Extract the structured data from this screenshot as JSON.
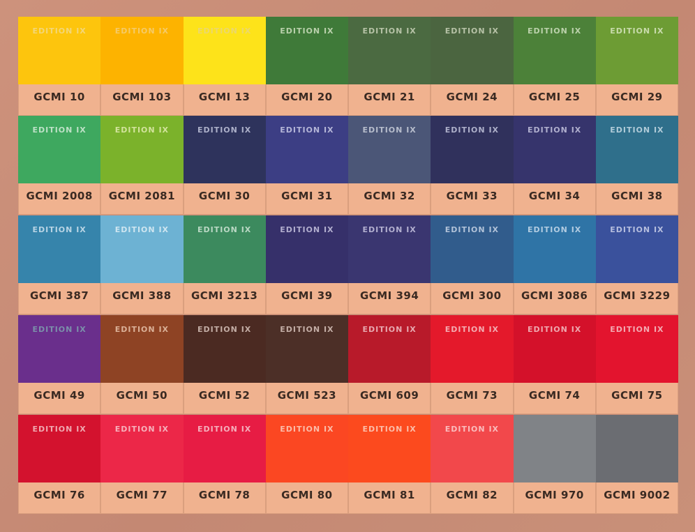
{
  "rows": [
    [
      {
        "code": "GCMI 10",
        "edition": "EDITION IX",
        "color": "#fdc50d",
        "text": "#f2d98a"
      },
      {
        "code": "GCMI 103",
        "edition": "EDITION IX",
        "color": "#fdb300",
        "text": "#f4cf7a"
      },
      {
        "code": "GCMI 13",
        "edition": "EDITION IX",
        "color": "#fde31a",
        "text": "#e9d67c"
      },
      {
        "code": "GCMI 20",
        "edition": "EDITION IX",
        "color": "#3f7a39",
        "text": "#cfe0c0"
      },
      {
        "code": "GCMI 21",
        "edition": "EDITION IX",
        "color": "#4b6a41",
        "text": "#c9d2b8"
      },
      {
        "code": "GCMI 24",
        "edition": "EDITION IX",
        "color": "#4b6540",
        "text": "#c9d2b8"
      },
      {
        "code": "GCMI 25",
        "edition": "EDITION IX",
        "color": "#4c8139",
        "text": "#cfe0c0"
      },
      {
        "code": "GCMI 29",
        "edition": "EDITION IX",
        "color": "#6d9c34",
        "text": "#d8e6c0"
      }
    ],
    [
      {
        "code": "GCMI 2008",
        "edition": "EDITION IX",
        "color": "#3ea85f",
        "text": "#d4ecd8"
      },
      {
        "code": "GCMI 2081",
        "edition": "EDITION IX",
        "color": "#7bb22b",
        "text": "#e2ecb0"
      },
      {
        "code": "GCMI 30",
        "edition": "EDITION IX",
        "color": "#2e335c",
        "text": "#c3c6dc"
      },
      {
        "code": "GCMI 31",
        "edition": "EDITION IX",
        "color": "#3c3e84",
        "text": "#c9cae6"
      },
      {
        "code": "GCMI 32",
        "edition": "EDITION IX",
        "color": "#4b5677",
        "text": "#c9ceda"
      },
      {
        "code": "GCMI 33",
        "edition": "EDITION IX",
        "color": "#30315c",
        "text": "#c3c6dc"
      },
      {
        "code": "GCMI 34",
        "edition": "EDITION IX",
        "color": "#36346c",
        "text": "#c6c5e0"
      },
      {
        "code": "GCMI 38",
        "edition": "EDITION IX",
        "color": "#2f6f8b",
        "text": "#c7dce6"
      }
    ],
    [
      {
        "code": "GCMI 387",
        "edition": "EDITION IX",
        "color": "#3684ab",
        "text": "#cfe2ee"
      },
      {
        "code": "GCMI 388",
        "edition": "EDITION IX",
        "color": "#6db2d3",
        "text": "#e0eff6"
      },
      {
        "code": "GCMI 3213",
        "edition": "EDITION IX",
        "color": "#3c8a5e",
        "text": "#d0e6d6"
      },
      {
        "code": "GCMI 39",
        "edition": "EDITION IX",
        "color": "#36306a",
        "text": "#c8c5e0"
      },
      {
        "code": "GCMI 394",
        "edition": "EDITION IX",
        "color": "#3a3670",
        "text": "#c8c5e0"
      },
      {
        "code": "GCMI 300",
        "edition": "EDITION IX",
        "color": "#315c8c",
        "text": "#c8d4e6"
      },
      {
        "code": "GCMI 3086",
        "edition": "EDITION IX",
        "color": "#2f74a6",
        "text": "#cadcec"
      },
      {
        "code": "GCMI 3229",
        "edition": "EDITION IX",
        "color": "#3a519c",
        "text": "#ccd2ea"
      }
    ],
    [
      {
        "code": "GCMI 49",
        "edition": "EDITION IX",
        "color": "#6a2f8c",
        "text": "#7fa0b0"
      },
      {
        "code": "GCMI 50",
        "edition": "EDITION IX",
        "color": "#8e4324",
        "text": "#e8c4ac"
      },
      {
        "code": "GCMI 52",
        "edition": "EDITION IX",
        "color": "#4b2a22",
        "text": "#d8c4bc"
      },
      {
        "code": "GCMI 523",
        "edition": "EDITION IX",
        "color": "#4c2f27",
        "text": "#d8c4bc"
      },
      {
        "code": "GCMI 609",
        "edition": "EDITION IX",
        "color": "#b81a2a",
        "text": "#f0c0c6"
      },
      {
        "code": "GCMI 73",
        "edition": "EDITION IX",
        "color": "#e4192b",
        "text": "#f6c4c8"
      },
      {
        "code": "GCMI 74",
        "edition": "EDITION IX",
        "color": "#d4112a",
        "text": "#f4c2c6"
      },
      {
        "code": "GCMI 75",
        "edition": "EDITION IX",
        "color": "#e3142e",
        "text": "#f6c4c8"
      }
    ],
    [
      {
        "code": "GCMI 76",
        "edition": "EDITION IX",
        "color": "#d3122e",
        "text": "#f4c2c6"
      },
      {
        "code": "GCMI 77",
        "edition": "EDITION IX",
        "color": "#ec2748",
        "text": "#f8c8d0"
      },
      {
        "code": "GCMI 78",
        "edition": "EDITION IX",
        "color": "#e71c44",
        "text": "#f8c8d0"
      },
      {
        "code": "GCMI 80",
        "edition": "EDITION IX",
        "color": "#fb4722",
        "text": "#fcd0c0"
      },
      {
        "code": "GCMI 81",
        "edition": "EDITION IX",
        "color": "#fc4a1e",
        "text": "#fcd0c0"
      },
      {
        "code": "GCMI 82",
        "edition": "EDITION IX",
        "color": "#f2484b",
        "text": "#fcd0d0"
      },
      {
        "code": "GCMI 970",
        "edition": "",
        "color": "#808387",
        "text": "#ffffff"
      },
      {
        "code": "GCMI 9002",
        "edition": "",
        "color": "#6b6d72",
        "text": "#ffffff"
      }
    ]
  ]
}
